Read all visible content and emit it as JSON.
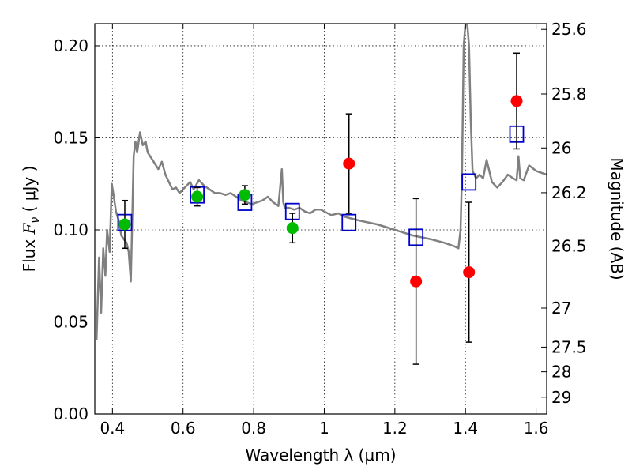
{
  "chart_data": {
    "type": "scatter",
    "xlabel": "Wavelength  λ (μm)",
    "ylabel": "Flux  F_ν  ( μJy )",
    "ylabel_parts": [
      "Flux  ",
      "F",
      "ν",
      "  (  μJy )"
    ],
    "y2label": "Magnitude (AB)",
    "xlim": [
      0.35,
      1.63
    ],
    "ylim": [
      0.0,
      0.212
    ],
    "grid": true,
    "x_ticks": [
      0.4,
      0.6,
      0.8,
      1.0,
      1.2,
      1.4,
      1.6
    ],
    "x_tick_labels": [
      "0.4",
      "0.6",
      "0.8",
      "1",
      "1.2",
      "1.4",
      "1.6"
    ],
    "y_ticks": [
      0.0,
      0.05,
      0.1,
      0.15,
      0.2
    ],
    "y_tick_labels": [
      "0.00",
      "0.05",
      "0.10",
      "0.15",
      "0.20"
    ],
    "y2_ticks": [
      {
        "label": "25.6",
        "flux": 0.2089
      },
      {
        "label": "25.8",
        "flux": 0.1738
      },
      {
        "label": "26",
        "flux": 0.1445
      },
      {
        "label": "26.2",
        "flux": 0.1202
      },
      {
        "label": "26.5",
        "flux": 0.0912
      },
      {
        "label": "27",
        "flux": 0.0575
      },
      {
        "label": "27.5",
        "flux": 0.0363
      },
      {
        "label": "28",
        "flux": 0.0229
      },
      {
        "label": "29",
        "flux": 0.0091
      }
    ],
    "series": [
      {
        "marker": "line",
        "color": "#808080",
        "x": [
          0.355,
          0.362,
          0.368,
          0.374,
          0.38,
          0.385,
          0.392,
          0.398,
          0.404,
          0.41,
          0.418,
          0.425,
          0.432,
          0.44,
          0.446,
          0.452,
          0.46,
          0.465,
          0.47,
          0.478,
          0.486,
          0.494,
          0.5,
          0.51,
          0.52,
          0.53,
          0.54,
          0.55,
          0.56,
          0.57,
          0.58,
          0.59,
          0.6,
          0.61,
          0.62,
          0.63,
          0.645,
          0.66,
          0.675,
          0.69,
          0.705,
          0.72,
          0.735,
          0.75,
          0.765,
          0.78,
          0.795,
          0.81,
          0.825,
          0.84,
          0.855,
          0.87,
          0.88,
          0.884,
          0.888,
          0.9,
          0.915,
          0.93,
          0.945,
          0.96,
          0.975,
          0.99,
          1.0,
          1.02,
          1.04,
          1.06,
          1.08,
          1.1,
          1.15,
          1.2,
          1.25,
          1.3,
          1.34,
          1.37,
          1.38,
          1.386,
          1.39,
          1.395,
          1.4,
          1.405,
          1.41,
          1.415,
          1.42,
          1.43,
          1.44,
          1.45,
          1.46,
          1.475,
          1.49,
          1.505,
          1.52,
          1.535,
          1.545,
          1.55,
          1.555,
          1.565,
          1.58,
          1.6,
          1.63
        ],
        "y": [
          0.04,
          0.085,
          0.055,
          0.09,
          0.075,
          0.1,
          0.088,
          0.125,
          0.118,
          0.11,
          0.105,
          0.097,
          0.095,
          0.093,
          0.088,
          0.072,
          0.14,
          0.148,
          0.142,
          0.153,
          0.146,
          0.148,
          0.142,
          0.139,
          0.136,
          0.133,
          0.137,
          0.13,
          0.126,
          0.122,
          0.123,
          0.12,
          0.122,
          0.124,
          0.126,
          0.122,
          0.127,
          0.124,
          0.122,
          0.12,
          0.12,
          0.119,
          0.12,
          0.118,
          0.116,
          0.115,
          0.114,
          0.115,
          0.116,
          0.118,
          0.115,
          0.113,
          0.133,
          0.115,
          0.112,
          0.112,
          0.111,
          0.112,
          0.11,
          0.109,
          0.111,
          0.111,
          0.11,
          0.108,
          0.109,
          0.107,
          0.106,
          0.105,
          0.103,
          0.1,
          0.097,
          0.095,
          0.093,
          0.091,
          0.09,
          0.1,
          0.13,
          0.2,
          0.212,
          0.212,
          0.2,
          0.16,
          0.132,
          0.128,
          0.13,
          0.128,
          0.138,
          0.126,
          0.123,
          0.126,
          0.13,
          0.128,
          0.127,
          0.14,
          0.128,
          0.127,
          0.135,
          0.132,
          0.13
        ]
      },
      {
        "marker": "square-open",
        "color": "#0000cc",
        "x": [
          0.435,
          0.64,
          0.775,
          0.91,
          1.07,
          1.26,
          1.41,
          1.545
        ],
        "y": [
          0.104,
          0.119,
          0.115,
          0.11,
          0.104,
          0.096,
          0.126,
          0.152
        ]
      },
      {
        "marker": "circle",
        "color": "#00bb00",
        "x": [
          0.435,
          0.64,
          0.775,
          0.91
        ],
        "y": [
          0.103,
          0.118,
          0.119,
          0.101
        ],
        "err": [
          0.013,
          0.005,
          0.005,
          0.008
        ]
      },
      {
        "marker": "circle",
        "color": "#ff0000",
        "x": [
          1.07,
          1.26,
          1.41,
          1.545
        ],
        "y": [
          0.136,
          0.072,
          0.077,
          0.17
        ],
        "err": [
          0.027,
          0.045,
          0.038,
          0.026
        ]
      }
    ]
  }
}
